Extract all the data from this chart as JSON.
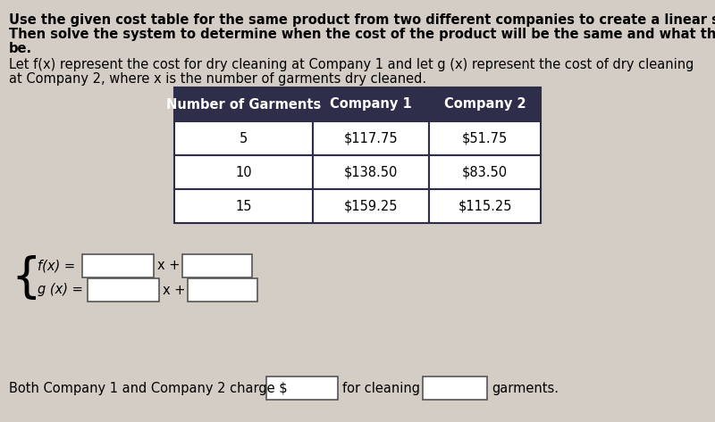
{
  "background_color": "#d4cdc6",
  "title_lines": [
    "Use the given cost table for the same product from two different companies to create a linear system.",
    "Then solve the system to determine when the cost of the product will be the same and what the price will",
    "be."
  ],
  "subtitle_lines": [
    "Let f(x) represent the cost for dry cleaning at Company 1 and let g (x) represent the cost of dry cleaning",
    "at Company 2, where x is the number of garments dry cleaned."
  ],
  "table_header": [
    "Number of Garments",
    "Company 1",
    "Company 2"
  ],
  "table_header_bg": "#2e2e4a",
  "table_header_color": "#ffffff",
  "table_rows": [
    [
      "5",
      "$117.75",
      "$51.75"
    ],
    [
      "10",
      "$138.50",
      "$83.50"
    ],
    [
      "15",
      "$159.25",
      "$115.25"
    ]
  ],
  "table_row_bg": "#ffffff",
  "table_border_color": "#2e2e4a",
  "input_box_color": "#ffffff",
  "input_box_border": "#555555",
  "font_size_title": 10.5,
  "font_size_subtitle": 10.5,
  "font_size_table_header": 10.5,
  "font_size_table_data": 10.5,
  "font_size_eq": 10.5,
  "font_size_bottom": 10.5
}
